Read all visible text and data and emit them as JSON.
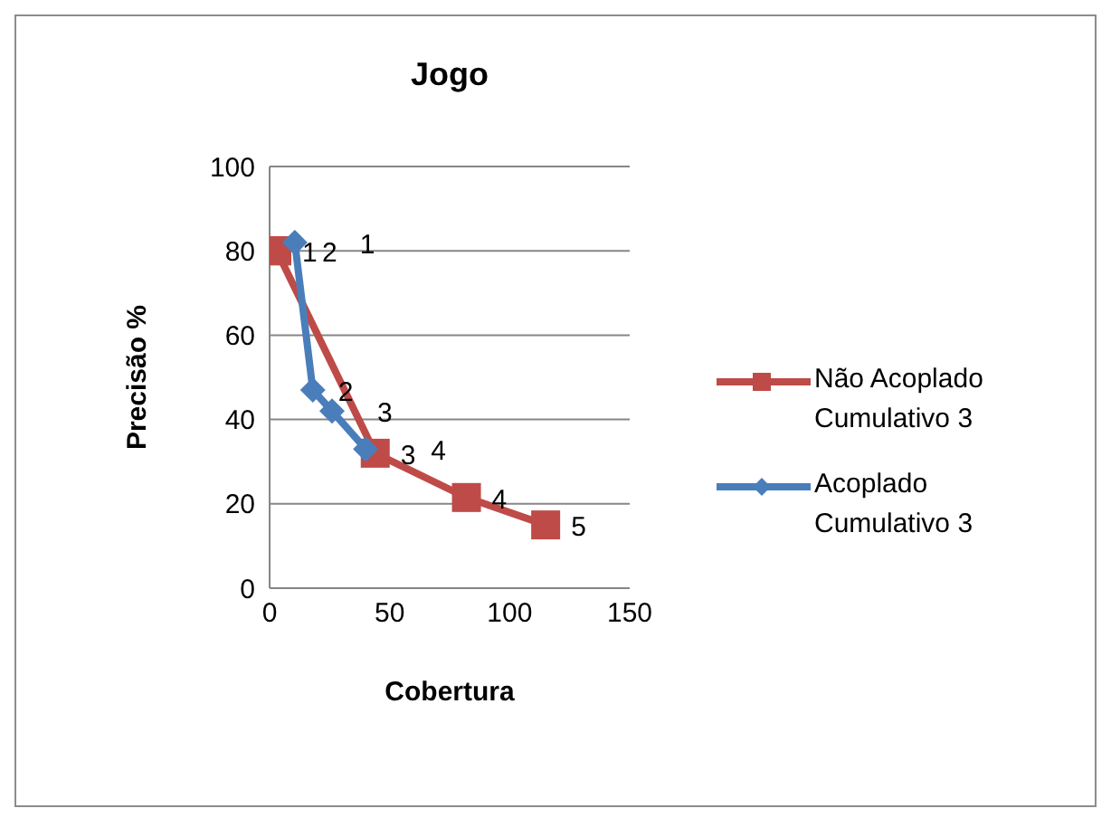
{
  "chart_data": {
    "type": "line",
    "title": "Jogo",
    "xlabel": "Cobertura",
    "ylabel": "Precisão %",
    "series": [
      {
        "name": "Não Acoplado Cumulativo 3",
        "color": "#be4b48",
        "marker": "square",
        "x": [
          3,
          3,
          44,
          82,
          115
        ],
        "values": [
          80,
          80,
          32,
          21.5,
          15
        ]
      },
      {
        "name": "Acoplado Cumulativo 3",
        "color": "#4a7ebb",
        "marker": "diamond",
        "x": [
          10.5,
          18,
          26,
          40
        ],
        "values": [
          82,
          47,
          42,
          33
        ]
      }
    ],
    "annotations": [
      {
        "text": "1",
        "x": 3,
        "y": 80
      },
      {
        "text": "2",
        "x": 3,
        "y": 80
      },
      {
        "text": "3",
        "x": 44,
        "y": 32
      },
      {
        "text": "4",
        "x": 82,
        "y": 21.5
      },
      {
        "text": "5",
        "x": 115,
        "y": 15
      },
      {
        "text": "1",
        "x": 10.5,
        "y": 82
      },
      {
        "text": "2",
        "x": 18,
        "y": 47
      },
      {
        "text": "3",
        "x": 26,
        "y": 42
      },
      {
        "text": "4",
        "x": 40,
        "y": 33
      }
    ],
    "xlim": [
      0,
      150
    ],
    "xticks": [
      0,
      50,
      100,
      150
    ],
    "ylim": [
      0,
      100
    ],
    "yticks": [
      0,
      20,
      40,
      60,
      80,
      100
    ],
    "grid": "y",
    "legend": "right"
  }
}
